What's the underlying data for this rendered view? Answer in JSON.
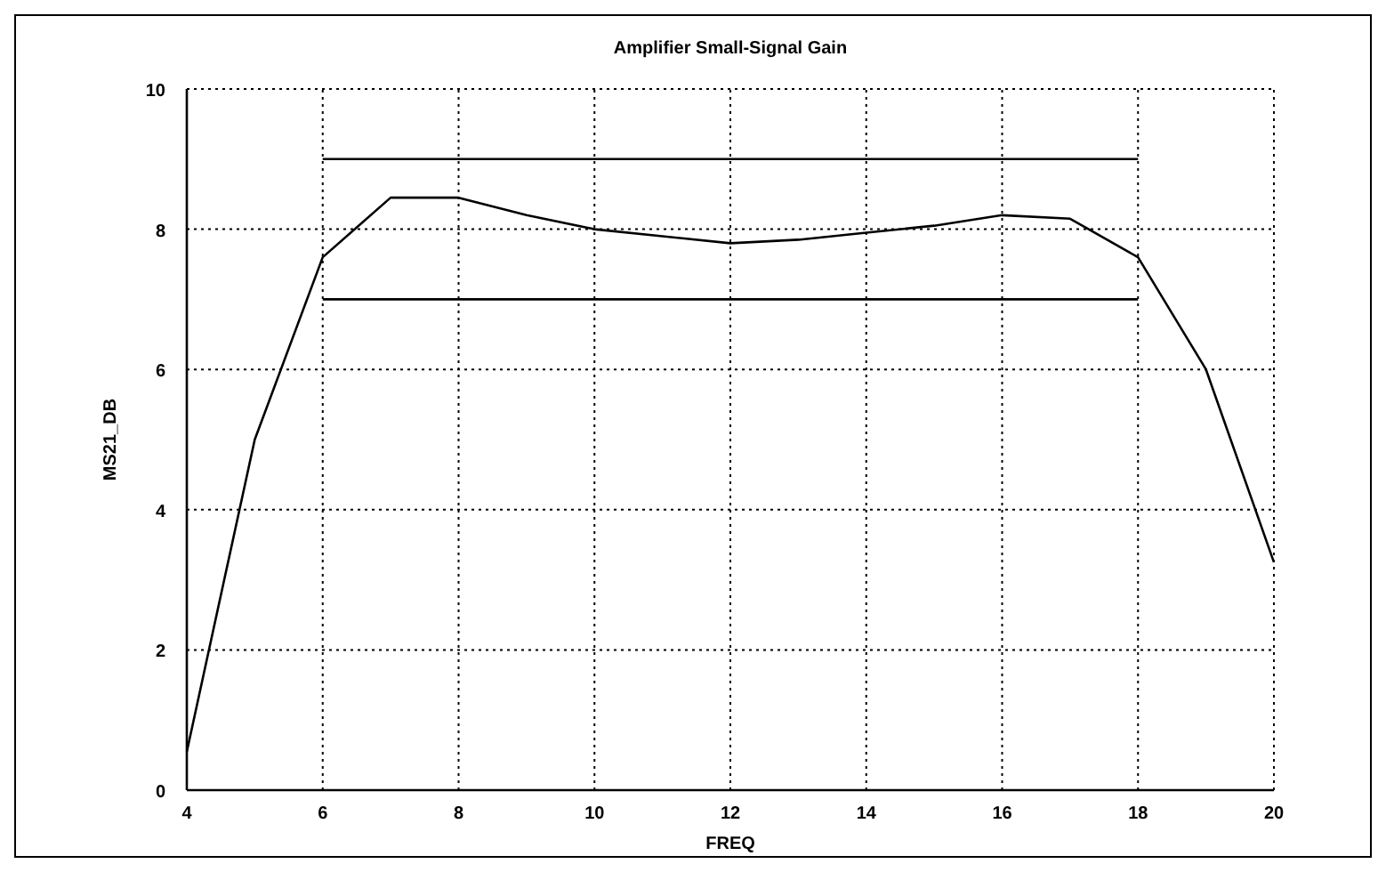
{
  "chart_data": {
    "type": "line",
    "title": "Amplifier Small-Signal Gain",
    "xlabel": "FREQ",
    "ylabel": "MS21_DB",
    "xlim": [
      4,
      20
    ],
    "ylim": [
      0,
      10
    ],
    "xticks": [
      4,
      6,
      8,
      10,
      12,
      14,
      16,
      18,
      20
    ],
    "yticks": [
      0,
      2,
      4,
      6,
      8,
      10
    ],
    "grid": true,
    "series": [
      {
        "color": "#000000",
        "x": [
          4,
          5,
          6,
          7,
          8,
          9,
          10,
          11,
          12,
          13,
          14,
          15,
          16,
          17,
          18,
          19,
          20
        ],
        "values": [
          0.55,
          5,
          7.6,
          8.45,
          8.45,
          8.2,
          8.0,
          7.9,
          7.8,
          7.85,
          7.95,
          8.05,
          8.2,
          8.15,
          7.6,
          6.0,
          3.25
        ]
      },
      {
        "color": "#000000",
        "x": [
          6,
          18
        ],
        "values": [
          9,
          9
        ]
      },
      {
        "color": "#000000",
        "x": [
          6,
          18
        ],
        "values": [
          7,
          7
        ]
      }
    ]
  }
}
